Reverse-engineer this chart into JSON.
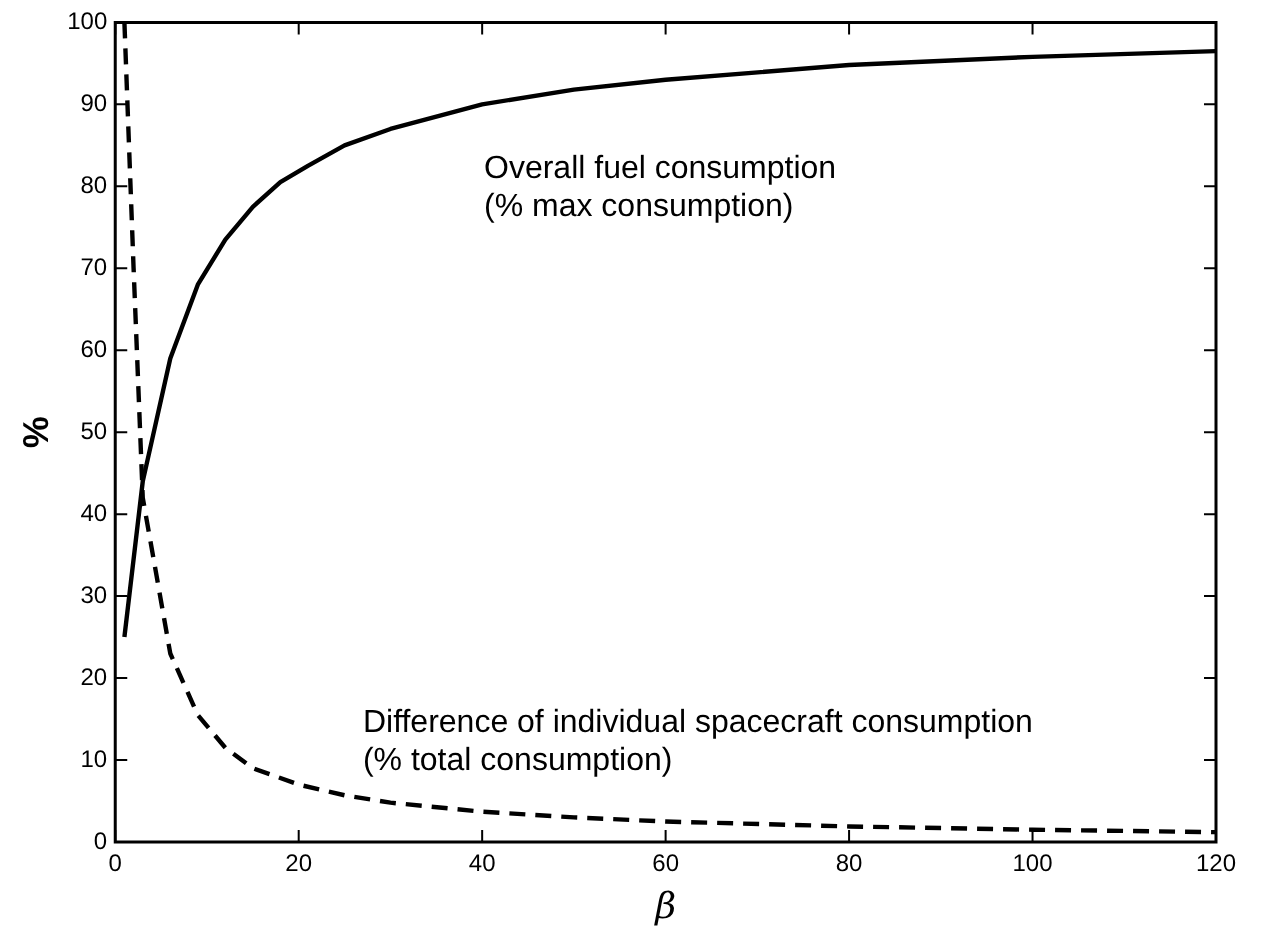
{
  "chart_data": {
    "type": "line",
    "xlabel": "β",
    "ylabel": "%",
    "xlim": [
      0,
      120
    ],
    "xticks": [
      0,
      20,
      40,
      60,
      80,
      100,
      120
    ],
    "ylim": [
      0,
      100
    ],
    "yticks": [
      0,
      10,
      20,
      30,
      40,
      50,
      60,
      70,
      80,
      90,
      100
    ],
    "grid": false,
    "legend": false,
    "marker": "none",
    "series": [
      {
        "color": "#000000",
        "line_style": "solid",
        "x": [
          1,
          3,
          6,
          9,
          12,
          15,
          18,
          21,
          25,
          30,
          40,
          50,
          60,
          80,
          100,
          120
        ],
        "values": [
          25,
          44,
          59,
          68,
          73.5,
          77.5,
          80.5,
          82.5,
          85,
          87,
          90,
          91.8,
          93,
          94.8,
          95.8,
          96.5
        ]
      },
      {
        "color": "#000000",
        "line_style": "dashed",
        "x": [
          1,
          2,
          3,
          6,
          9,
          12,
          15,
          20,
          25,
          30,
          40,
          50,
          60,
          80,
          100,
          120
        ],
        "values": [
          100,
          70,
          42,
          23,
          15.5,
          11.5,
          9,
          7,
          5.7,
          4.8,
          3.7,
          3,
          2.5,
          1.9,
          1.5,
          1.2
        ]
      }
    ],
    "annotations": [
      "Overall fuel consumption\n(% max consumption)",
      "Difference of individual spacecraft consumption\n(% total consumption)"
    ]
  }
}
